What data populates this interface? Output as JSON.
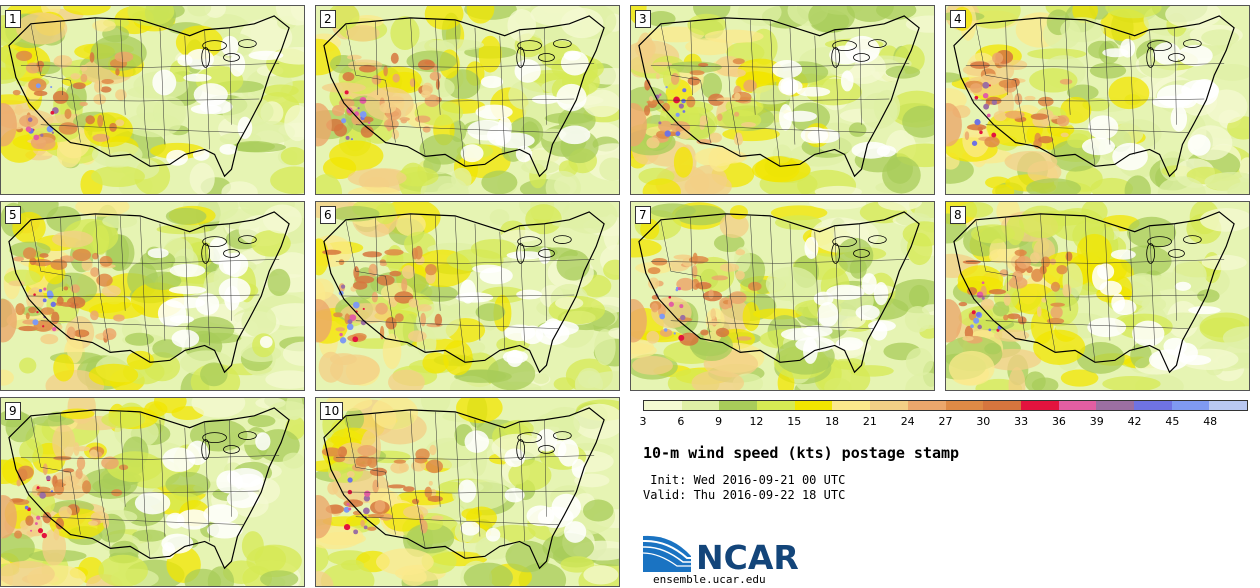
{
  "panels": [
    {
      "label": "1"
    },
    {
      "label": "2"
    },
    {
      "label": "3"
    },
    {
      "label": "4"
    },
    {
      "label": "5"
    },
    {
      "label": "6"
    },
    {
      "label": "7"
    },
    {
      "label": "8"
    },
    {
      "label": "9"
    },
    {
      "label": "10"
    }
  ],
  "colorbar": {
    "colors": [
      "#f4fad2",
      "#dff0a6",
      "#a8cc5a",
      "#d6ea54",
      "#f2e600",
      "#fbe98c",
      "#f3cf86",
      "#eba76c",
      "#de8a46",
      "#d6753e",
      "#e3133e",
      "#e35ea2",
      "#9c6fa2",
      "#6f73e3",
      "#7f9af2",
      "#b9c8f2"
    ],
    "tick_labels": [
      "3",
      "6",
      "9",
      "12",
      "15",
      "18",
      "21",
      "24",
      "27",
      "30",
      "33",
      "36",
      "39",
      "42",
      "45",
      "48"
    ]
  },
  "title": "10-m wind speed (kts) postage stamp",
  "init_text": " Init: Wed 2016-09-21 00 UTC",
  "valid_text": "Valid: Thu 2016-09-22 18 UTC",
  "logo": {
    "name": "NCAR",
    "url": "ensemble.ucar.edu"
  }
}
